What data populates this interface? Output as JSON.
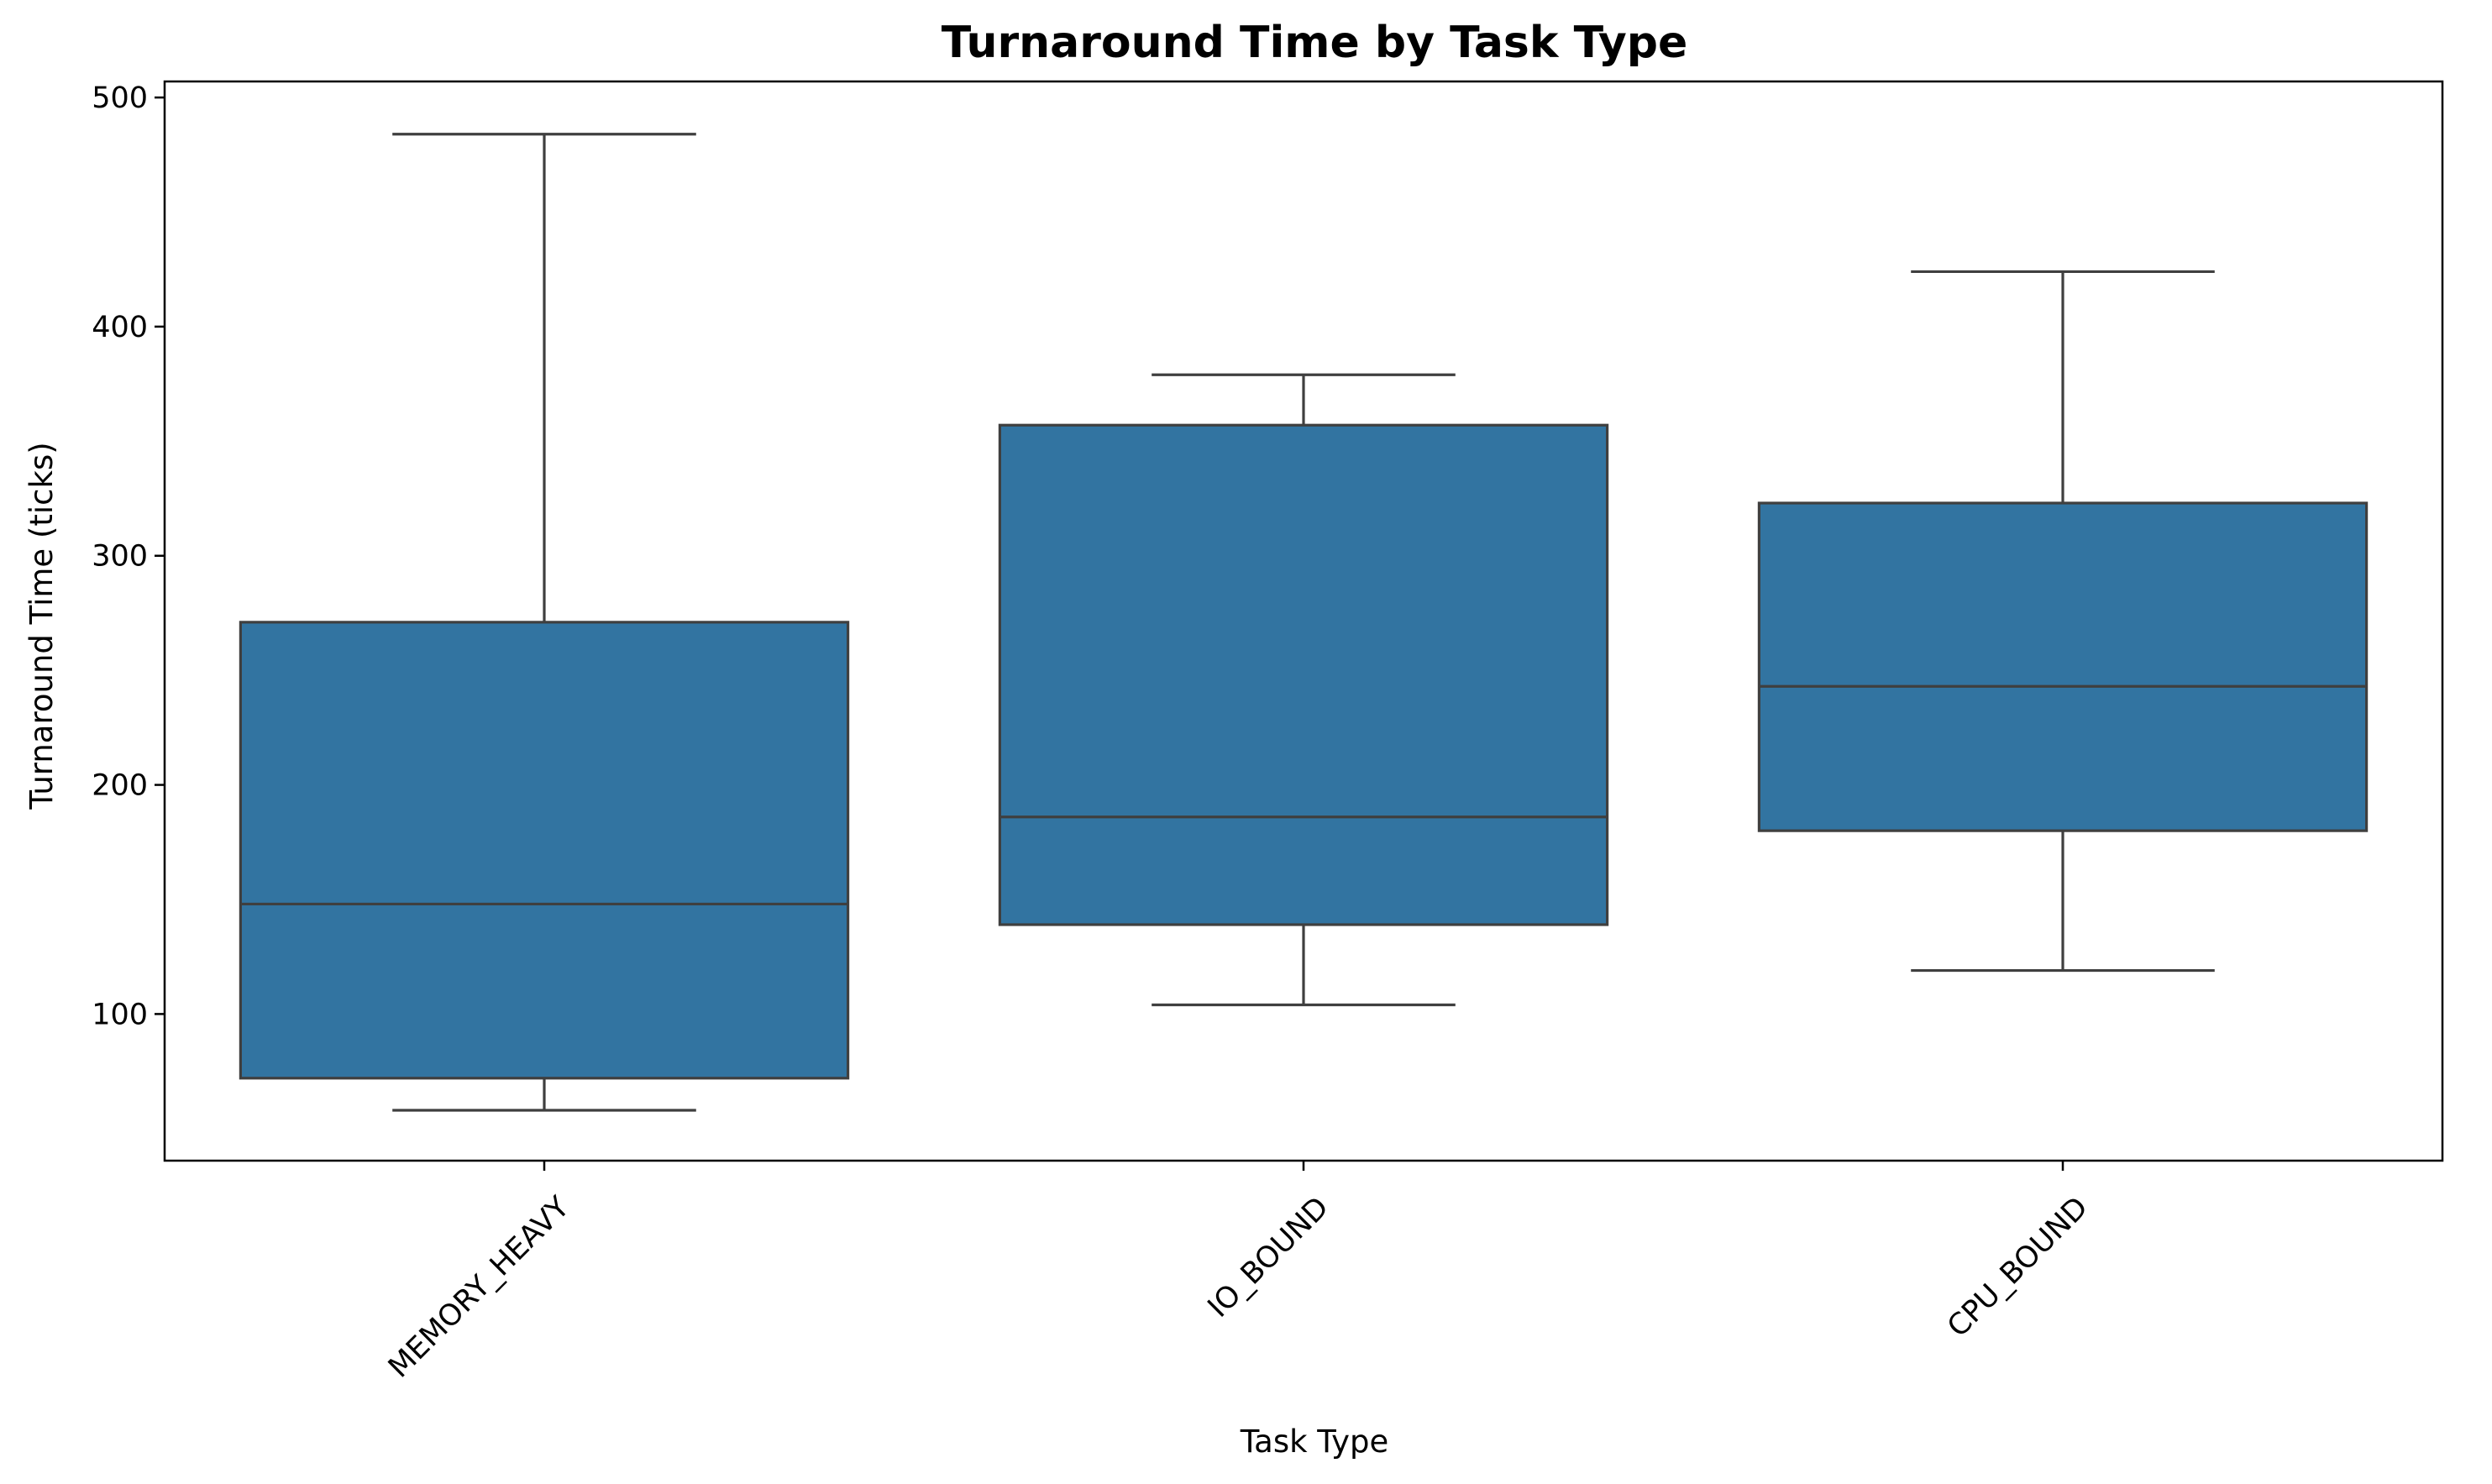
{
  "chart_data": {
    "type": "box",
    "title": "Turnaround Time by Task Type",
    "xlabel": "Task Type",
    "ylabel": "Turnaround Time (ticks)",
    "ylim": [
      36,
      507
    ],
    "yticks": [
      100,
      200,
      300,
      400,
      500
    ],
    "categories": [
      "MEMORY_HEAVY",
      "IO_BOUND",
      "CPU_BOUND"
    ],
    "boxes": [
      {
        "category": "MEMORY_HEAVY",
        "whisker_low": 58,
        "q1": 72,
        "median": 148,
        "q3": 271,
        "whisker_high": 484
      },
      {
        "category": "IO_BOUND",
        "whisker_low": 104,
        "q1": 139,
        "median": 186,
        "q3": 357,
        "whisker_high": 379
      },
      {
        "category": "CPU_BOUND",
        "whisker_low": 119,
        "q1": 180,
        "median": 243,
        "q3": 323,
        "whisker_high": 424
      }
    ],
    "box_color": "#3274a1",
    "line_color": "#3f3f3f",
    "grid": false,
    "legend": "none"
  }
}
